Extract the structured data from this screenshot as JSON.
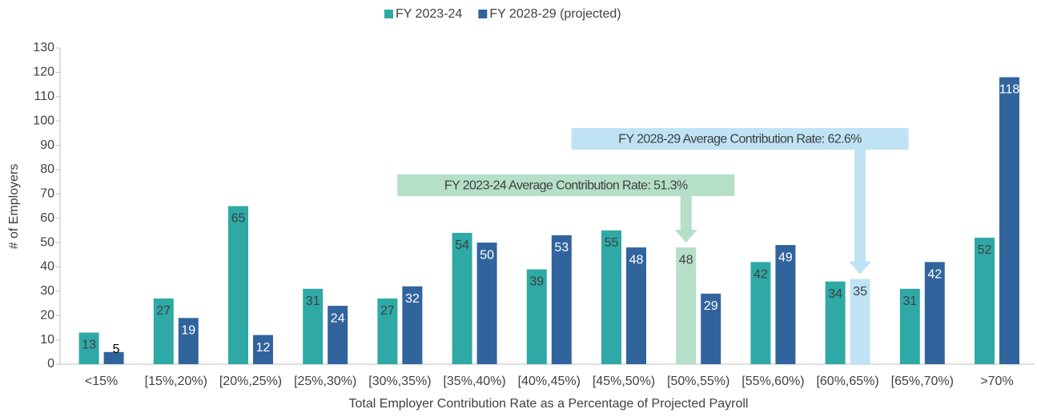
{
  "chart_data": {
    "type": "bar",
    "categories": [
      "<15%",
      "[15%,20%)",
      "[20%,25%)",
      "[25%,30%)",
      "[30%,35%)",
      "[35%,40%)",
      "[40%,45%)",
      "[45%,50%)",
      "[50%,55%)",
      "[55%,60%)",
      "[60%,65%)",
      "[65%,70%)",
      ">70%"
    ],
    "series": [
      {
        "name": "FY 2023-24",
        "color": "#2ea9a6",
        "values": [
          13,
          27,
          65,
          31,
          27,
          54,
          39,
          55,
          48,
          42,
          34,
          31,
          52
        ],
        "colors": [
          "#2ea9a6",
          "#2ea9a6",
          "#2ea9a6",
          "#2ea9a6",
          "#2ea9a6",
          "#2ea9a6",
          "#2ea9a6",
          "#2ea9a6",
          "#b5dfc8",
          "#2ea9a6",
          "#2ea9a6",
          "#2ea9a6",
          "#2ea9a6"
        ]
      },
      {
        "name": "FY 2028-29 (projected)",
        "color": "#31649d",
        "values": [
          5,
          19,
          12,
          24,
          32,
          50,
          53,
          48,
          29,
          49,
          35,
          42,
          118
        ],
        "colors": [
          "#31649d",
          "#31649d",
          "#31649d",
          "#31649d",
          "#31649d",
          "#31649d",
          "#31649d",
          "#31649d",
          "#31649d",
          "#31649d",
          "#bfe3f5",
          "#31649d",
          "#31649d"
        ]
      }
    ],
    "ylim": [
      0,
      130
    ],
    "yticks": [
      0,
      10,
      20,
      30,
      40,
      50,
      60,
      70,
      80,
      90,
      100,
      110,
      120,
      130
    ],
    "x_label": "Total Employer Contribution Rate as a Percentage of Projected Payroll",
    "y_label": "# of Employers",
    "legend": "top",
    "annotations": [
      {
        "text": "FY 2023-24 Average Contribution Rate:  51.3%",
        "color": "#b5dfc8",
        "category": "[50%,55%)",
        "series": "FY 2023-24"
      },
      {
        "text": "FY 2028-29 Average Contribution Rate:  62.6%",
        "color": "#bfe3f5",
        "category": "[60%,65%)",
        "series": "FY 2028-29 (projected)"
      }
    ]
  }
}
